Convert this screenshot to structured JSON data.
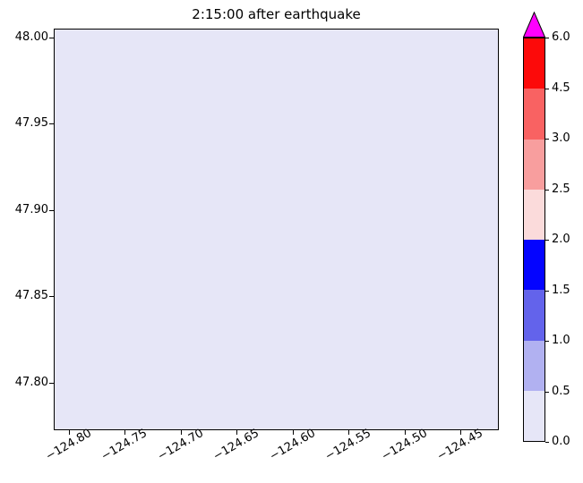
{
  "chart_data": {
    "type": "heatmap",
    "title": "2:15:00 after earthquake",
    "x_axis": {
      "range": [
        -124.8135,
        -124.416
      ],
      "ticks": [
        {
          "value": -124.8,
          "label": "−124.80"
        },
        {
          "value": -124.75,
          "label": "−124.75"
        },
        {
          "value": -124.7,
          "label": "−124.70"
        },
        {
          "value": -124.65,
          "label": "−124.65"
        },
        {
          "value": -124.6,
          "label": "−124.60"
        },
        {
          "value": -124.55,
          "label": "−124.55"
        },
        {
          "value": -124.5,
          "label": "−124.50"
        },
        {
          "value": -124.45,
          "label": "−124.45"
        }
      ]
    },
    "y_axis": {
      "range": [
        47.7725,
        48.005
      ],
      "ticks": [
        {
          "value": 48.0,
          "label": "48.00"
        },
        {
          "value": 47.95,
          "label": "47.95"
        },
        {
          "value": 47.9,
          "label": "47.90"
        },
        {
          "value": 47.85,
          "label": "47.85"
        },
        {
          "value": 47.8,
          "label": "47.80"
        }
      ]
    },
    "field": {
      "description": "uniform field over the whole map extent",
      "uniform_value": 0.0,
      "color": "#e6e6f7"
    },
    "colorbar": {
      "spacing": "uniform",
      "boundaries": [
        0.0,
        0.5,
        1.0,
        1.5,
        2.0,
        2.5,
        3.0,
        4.5,
        6.0
      ],
      "tick_labels": [
        "0.0",
        "0.5",
        "1.0",
        "1.5",
        "2.0",
        "2.5",
        "3.0",
        "4.5",
        "6.0"
      ],
      "segment_colors_bottom_to_top": [
        "#e6e6f7",
        "#b1b1f1",
        "#6363eb",
        "#0404ff",
        "#fbdbdb",
        "#f89e9e",
        "#f96262",
        "#fc0a0a"
      ],
      "extend_over_color": "#ff00ff"
    }
  }
}
